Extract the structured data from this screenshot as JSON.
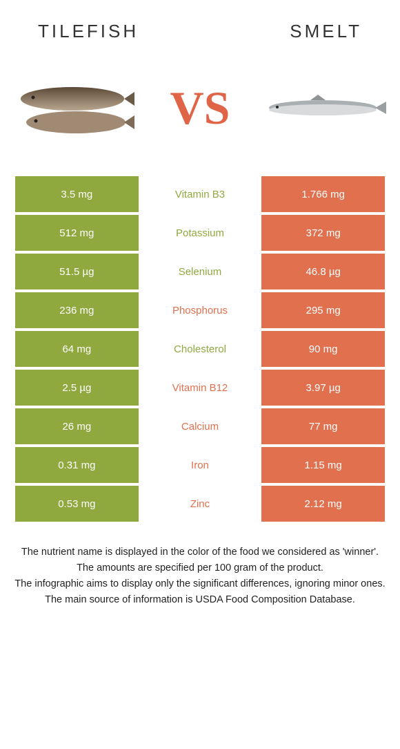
{
  "colors": {
    "left": "#8fa93f",
    "right": "#e1704e",
    "mid_bg": "#ffffff",
    "nutrient_left_text": "#8fa93f",
    "nutrient_right_text": "#e1704e",
    "cell_text": "#ffffff",
    "vs": "#e06548"
  },
  "header": {
    "left_title": "Tilefish",
    "right_title": "Smelt",
    "vs": "VS"
  },
  "rows": [
    {
      "left": "3.5 mg",
      "nutrient": "Vitamin B3",
      "right": "1.766 mg",
      "winner": "left"
    },
    {
      "left": "512 mg",
      "nutrient": "Potassium",
      "right": "372 mg",
      "winner": "left"
    },
    {
      "left": "51.5 µg",
      "nutrient": "Selenium",
      "right": "46.8 µg",
      "winner": "left"
    },
    {
      "left": "236 mg",
      "nutrient": "Phosphorus",
      "right": "295 mg",
      "winner": "right"
    },
    {
      "left": "64 mg",
      "nutrient": "Cholesterol",
      "right": "90 mg",
      "winner": "left"
    },
    {
      "left": "2.5 µg",
      "nutrient": "Vitamin B12",
      "right": "3.97 µg",
      "winner": "right"
    },
    {
      "left": "26 mg",
      "nutrient": "Calcium",
      "right": "77 mg",
      "winner": "right"
    },
    {
      "left": "0.31 mg",
      "nutrient": "Iron",
      "right": "1.15 mg",
      "winner": "right"
    },
    {
      "left": "0.53 mg",
      "nutrient": "Zinc",
      "right": "2.12 mg",
      "winner": "right"
    }
  ],
  "footnotes": [
    "The nutrient name is displayed in the color of the food we considered as 'winner'.",
    "The amounts are specified per 100 gram of the product.",
    "The infographic aims to display only the significant differences, ignoring minor ones.",
    "The main source of information is USDA Food Composition Database."
  ]
}
